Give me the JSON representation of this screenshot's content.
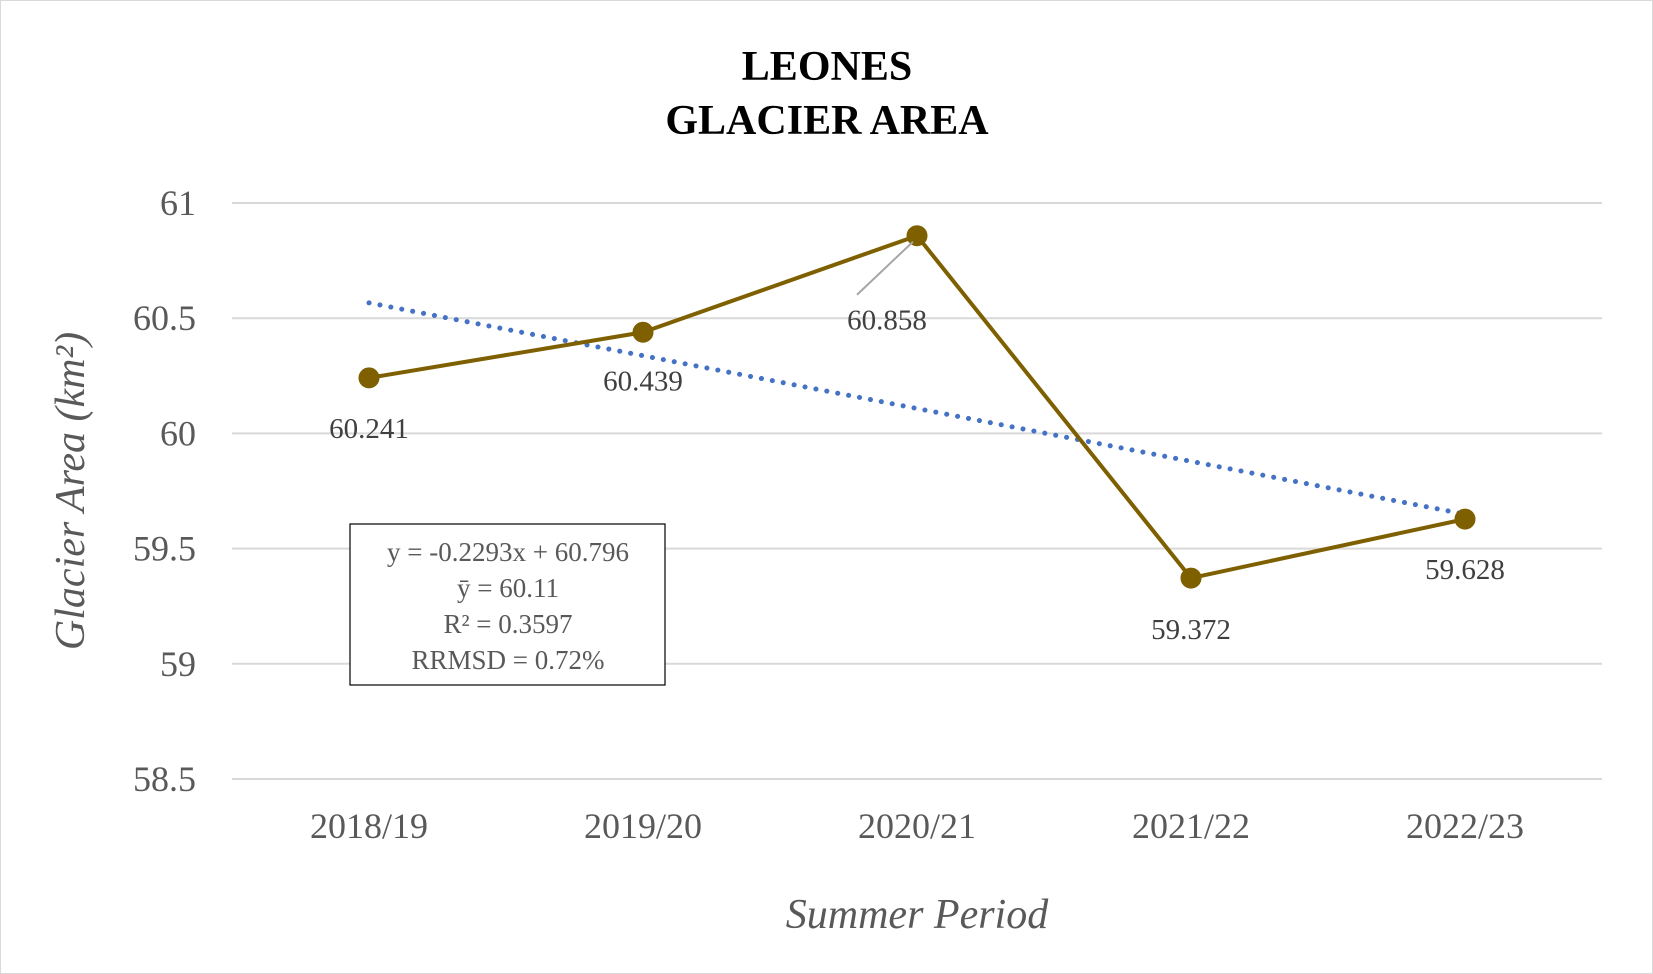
{
  "chart_data": {
    "type": "line",
    "title_lines": [
      "LEONES",
      "GLACIER AREA"
    ],
    "xlabel": "Summer Period",
    "ylabel": "Glacier Area (km²)",
    "categories": [
      "2018/19",
      "2019/20",
      "2020/21",
      "2021/22",
      "2022/23"
    ],
    "series": [
      {
        "values": [
          60.241,
          60.439,
          60.858,
          59.372,
          59.628
        ],
        "color": "#7f6000",
        "marker": "circle"
      }
    ],
    "data_labels": [
      "60.241",
      "60.439",
      "60.858",
      "59.372",
      "59.628"
    ],
    "trendline": {
      "type": "linear",
      "slope": -0.2293,
      "intercept": 60.796,
      "style": "dotted",
      "color": "#4472c4"
    },
    "stats_box": [
      "y = -0.2293x + 60.796",
      "ȳ = 60.11",
      "R² = 0.3597",
      "RRMSD = 0.72%"
    ],
    "ylim": [
      58.5,
      61
    ],
    "yticks": [
      "58.5",
      "59",
      "59.5",
      "60",
      "60.5",
      "61"
    ],
    "grid": true,
    "legend": "none"
  }
}
